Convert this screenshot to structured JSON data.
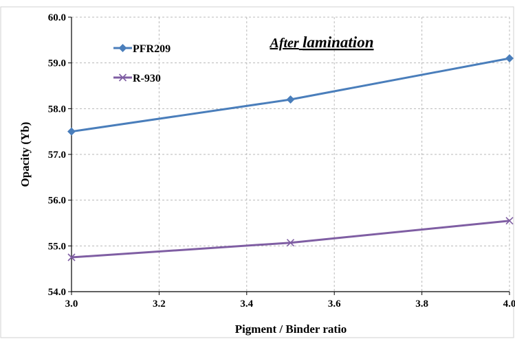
{
  "chart_data": {
    "type": "line",
    "title": "After lamination",
    "title_parts": [
      "After",
      "lamination"
    ],
    "xlabel": "Pigment / Binder ratio",
    "ylabel": "Opacity (Yb)",
    "xlim": [
      3.0,
      4.0
    ],
    "ylim": [
      54.0,
      60.0
    ],
    "x_ticks": [
      "3.0",
      "3.2",
      "3.4",
      "3.6",
      "3.8",
      "4.0"
    ],
    "y_ticks": [
      "54.0",
      "55.0",
      "56.0",
      "57.0",
      "58.0",
      "59.0",
      "60.0"
    ],
    "grid": true,
    "legend_position": "top-left",
    "series": [
      {
        "name": "PFR209",
        "color": "#4a7ebb",
        "marker": "diamond",
        "x": [
          3.0,
          3.5,
          4.0
        ],
        "values": [
          57.5,
          58.2,
          59.1
        ]
      },
      {
        "name": "R-930",
        "color": "#7f5ea3",
        "marker": "x",
        "x": [
          3.0,
          3.5,
          4.0
        ],
        "values": [
          54.75,
          55.07,
          55.55
        ]
      }
    ]
  }
}
